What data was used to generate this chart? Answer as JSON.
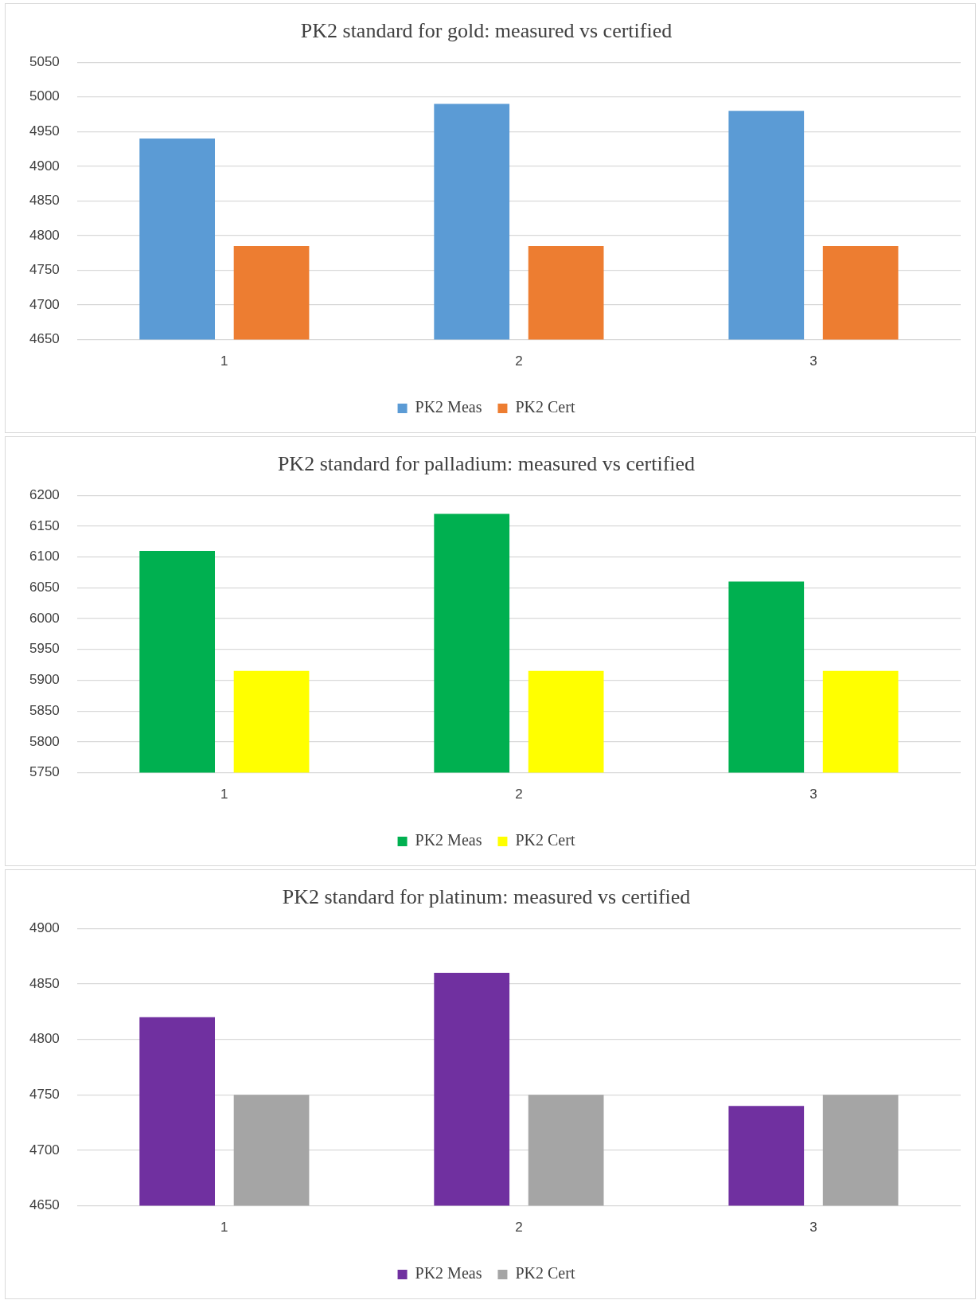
{
  "chart_data": [
    {
      "type": "bar",
      "title": "PK2 standard for gold: measured vs certified",
      "categories": [
        "1",
        "2",
        "3"
      ],
      "series": [
        {
          "name": "PK2 Meas",
          "color": "#5b9bd5",
          "values": [
            4940,
            4990,
            4980
          ]
        },
        {
          "name": "PK2 Cert",
          "color": "#ed7d31",
          "values": [
            4785,
            4785,
            4785
          ]
        }
      ],
      "ylim": [
        4650,
        5050
      ],
      "yticks": [
        4650,
        4700,
        4750,
        4800,
        4850,
        4900,
        4950,
        5000,
        5050
      ],
      "grid": "y",
      "legend": "bottom"
    },
    {
      "type": "bar",
      "title": "PK2 standard for palladium: measured vs certified",
      "categories": [
        "1",
        "2",
        "3"
      ],
      "series": [
        {
          "name": "PK2 Meas",
          "color": "#00b050",
          "values": [
            6110,
            6170,
            6060
          ]
        },
        {
          "name": "PK2 Cert",
          "color": "#ffff00",
          "values": [
            5915,
            5915,
            5915
          ]
        }
      ],
      "ylim": [
        5750,
        6200
      ],
      "yticks": [
        5750,
        5800,
        5850,
        5900,
        5950,
        6000,
        6050,
        6100,
        6150,
        6200
      ],
      "grid": "y",
      "legend": "bottom"
    },
    {
      "type": "bar",
      "title": "PK2 standard for platinum: measured vs certified",
      "categories": [
        "1",
        "2",
        "3"
      ],
      "series": [
        {
          "name": "PK2 Meas",
          "color": "#7030a0",
          "values": [
            4820,
            4860,
            4740
          ]
        },
        {
          "name": "PK2 Cert",
          "color": "#a5a5a5",
          "values": [
            4750,
            4750,
            4750
          ]
        }
      ],
      "ylim": [
        4650,
        4900
      ],
      "yticks": [
        4650,
        4700,
        4750,
        4800,
        4850,
        4900
      ],
      "grid": "y",
      "legend": "bottom"
    }
  ]
}
